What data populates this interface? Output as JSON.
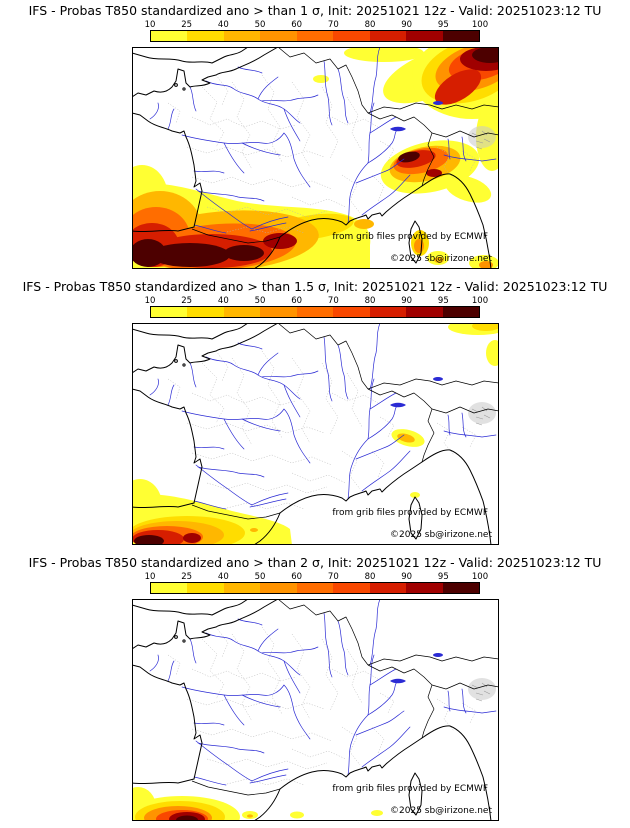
{
  "panels": [
    {
      "id": "prob-gt-1-sigma",
      "title": "IFS - Probas T850  standardized ano > than 1 σ, Init: 20251021 12z - Valid: 20251023:12 TU",
      "credit": "from grib files provided by ECMWF",
      "copyright": "©2025 sb@irizone.net"
    },
    {
      "id": "prob-gt-1p5-sigma",
      "title": "IFS - Probas T850  standardized ano > than 1.5 σ, Init: 20251021 12z - Valid: 20251023:12 TU",
      "credit": "from grib files provided by ECMWF",
      "copyright": "©2025 sb@irizone.net"
    },
    {
      "id": "prob-gt-2-sigma",
      "title": "IFS - Probas T850  standardized ano > than 2 σ, Init: 20251021 12z - Valid: 20251023:12 TU",
      "credit": "from grib files provided by ECMWF",
      "copyright": "©2025 sb@irizone.net"
    }
  ],
  "colorbar": {
    "ticks": [
      "10",
      "25",
      "40",
      "50",
      "60",
      "70",
      "80",
      "90",
      "95",
      "100"
    ],
    "colors": [
      "#ffff33",
      "#ffdd00",
      "#ffb700",
      "#ff9300",
      "#ff6d00",
      "#f94800",
      "#d61e00",
      "#a00000",
      "#4d0000"
    ]
  },
  "map_colors": {
    "coast": "#000000",
    "rivers": "#2b2bd4",
    "admin_boundaries": "#b5b5b5",
    "sea_land": "#ffffff"
  }
}
